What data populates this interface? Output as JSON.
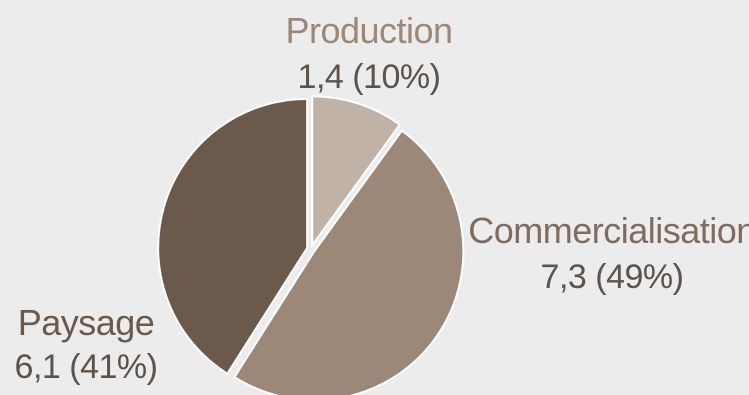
{
  "chart_data": {
    "type": "pie",
    "title": "",
    "slices": [
      {
        "name": "Production",
        "value": 1.4,
        "percent": 10,
        "value_label": "1,4 (10%)",
        "color": "#c1b2a7",
        "label_color": "#9c8878"
      },
      {
        "name": "Commercialisation",
        "value": 7.3,
        "percent": 49,
        "value_label": "7,3 (49%)",
        "color": "#9c8879",
        "label_color": "#7f6c5f"
      },
      {
        "name": "Paysage",
        "value": 6.1,
        "percent": 41,
        "value_label": "6,1 (41%)",
        "color": "#6b5a4c",
        "label_color": "#6b5a4c"
      }
    ]
  }
}
